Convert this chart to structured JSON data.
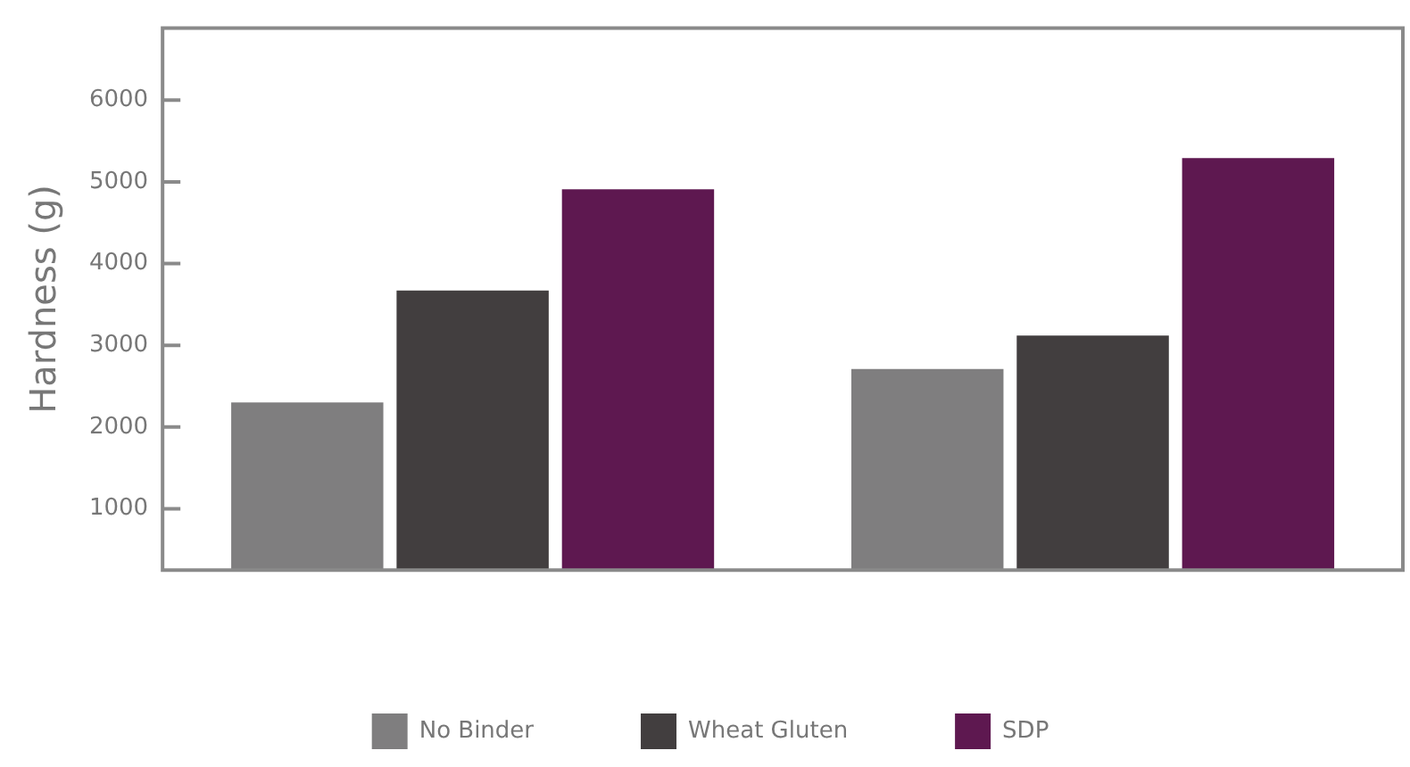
{
  "chart_data": {
    "type": "bar",
    "ylabel": "Hardness (g)",
    "categories": [
      null,
      null
    ],
    "series": [
      {
        "name": "No Binder",
        "color": "#7f7e7f",
        "values": [
          2300,
          2710
        ]
      },
      {
        "name": "Wheat Gluten",
        "color": "#423e3f",
        "values": [
          3670,
          3120
        ]
      },
      {
        "name": "SDP",
        "color": "#5e1850",
        "values": [
          4910,
          5290
        ]
      }
    ],
    "ylim": [
      250,
      6880
    ],
    "yticks": [
      1000,
      2000,
      3000,
      4000,
      5000,
      6000
    ],
    "grid": false,
    "legend": "bottom"
  }
}
